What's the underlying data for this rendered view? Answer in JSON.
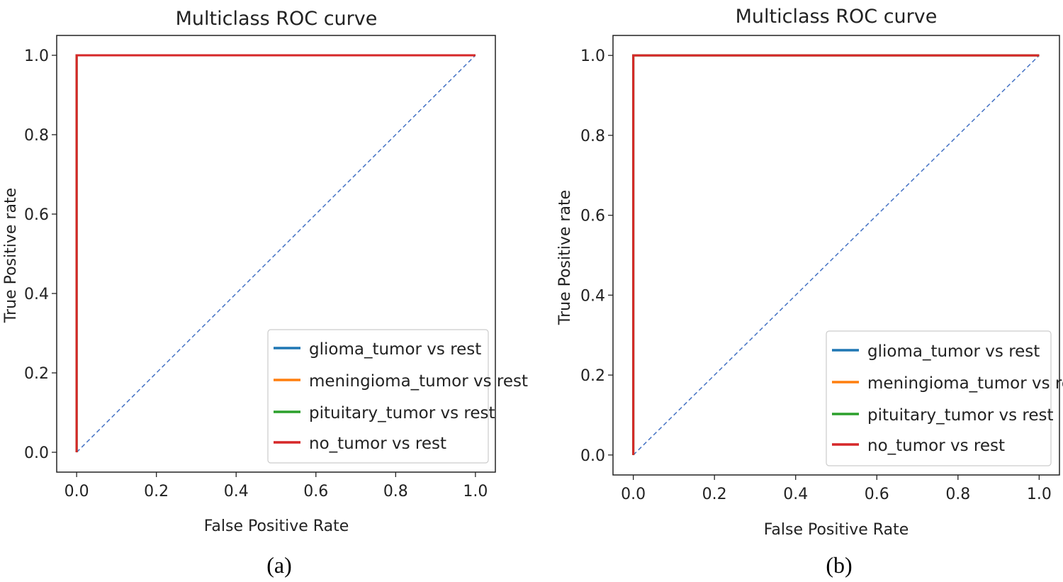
{
  "chart_data": [
    {
      "type": "line",
      "panel_label": "(a)",
      "title": "Multiclass ROC curve",
      "xlabel": "False Positive Rate",
      "ylabel": "True Positive rate",
      "xlim": [
        -0.05,
        1.05
      ],
      "ylim": [
        -0.05,
        1.05
      ],
      "xticks": [
        "0.0",
        "0.2",
        "0.4",
        "0.6",
        "0.8",
        "1.0"
      ],
      "yticks": [
        "0.0",
        "0.2",
        "0.4",
        "0.6",
        "0.8",
        "1.0"
      ],
      "grid": false,
      "legend_position": "lower-right",
      "series": [
        {
          "name": "glioma_tumor vs rest",
          "color": "#1f77b4",
          "x": [
            0,
            0,
            1
          ],
          "y": [
            0,
            1,
            1
          ]
        },
        {
          "name": "meningioma_tumor vs rest",
          "color": "#ff7f0e",
          "x": [
            0,
            0,
            1
          ],
          "y": [
            0,
            1,
            1
          ]
        },
        {
          "name": "pituitary_tumor vs rest",
          "color": "#2ca02c",
          "x": [
            0,
            0,
            1
          ],
          "y": [
            0,
            1,
            1
          ]
        },
        {
          "name": "no_tumor vs rest",
          "color": "#d62728",
          "x": [
            0,
            0,
            1
          ],
          "y": [
            0,
            1,
            1
          ]
        }
      ],
      "reference_line": {
        "color": "#4472c4",
        "style": "dashed",
        "x": [
          0,
          1
        ],
        "y": [
          0,
          1
        ]
      }
    },
    {
      "type": "line",
      "panel_label": "(b)",
      "title": "Multiclass ROC curve",
      "xlabel": "False Positive Rate",
      "ylabel": "True Positive rate",
      "xlim": [
        -0.05,
        1.05
      ],
      "ylim": [
        -0.05,
        1.05
      ],
      "xticks": [
        "0.0",
        "0.2",
        "0.4",
        "0.6",
        "0.8",
        "1.0"
      ],
      "yticks": [
        "0.0",
        "0.2",
        "0.4",
        "0.6",
        "0.8",
        "1.0"
      ],
      "grid": false,
      "legend_position": "lower-right",
      "series": [
        {
          "name": "glioma_tumor vs rest",
          "color": "#1f77b4",
          "x": [
            0,
            0,
            1
          ],
          "y": [
            0,
            1,
            1
          ]
        },
        {
          "name": "meningioma_tumor vs rest",
          "color": "#ff7f0e",
          "x": [
            0,
            0,
            1
          ],
          "y": [
            0,
            1,
            1
          ]
        },
        {
          "name": "pituitary_tumor vs rest",
          "color": "#2ca02c",
          "x": [
            0,
            0,
            1
          ],
          "y": [
            0,
            1,
            1
          ]
        },
        {
          "name": "no_tumor vs rest",
          "color": "#d62728",
          "x": [
            0,
            0,
            1
          ],
          "y": [
            0,
            1,
            1
          ]
        }
      ],
      "reference_line": {
        "color": "#4472c4",
        "style": "dashed",
        "x": [
          0,
          1
        ],
        "y": [
          0,
          1
        ]
      }
    }
  ]
}
